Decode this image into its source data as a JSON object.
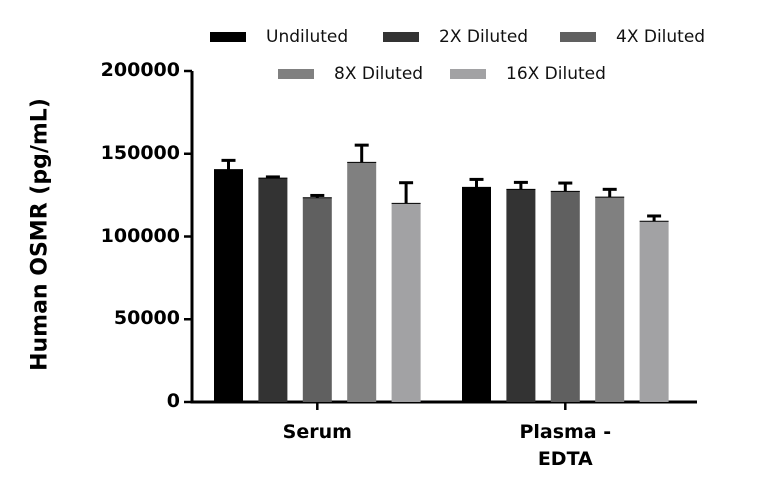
{
  "chart_data": {
    "type": "bar",
    "title": "",
    "xlabel": "",
    "ylabel": "Human OSMR (pg/mL)",
    "ylim": [
      0,
      200000
    ],
    "yticks": [
      "0",
      "50000",
      "100000",
      "150000",
      "200000"
    ],
    "yticks_values": [
      0,
      50000,
      100000,
      150000,
      200000
    ],
    "grid": false,
    "legend_position": "top",
    "categories": [
      "Serum",
      "Plasma - EDTA"
    ],
    "category_lines": [
      [
        "Serum"
      ],
      [
        "Plasma -",
        "EDTA"
      ]
    ],
    "series": [
      {
        "name": "Undiluted",
        "color": "#000000",
        "values": [
          140400,
          129700
        ],
        "error": [
          5600,
          4800
        ]
      },
      {
        "name": "2X Diluted",
        "color": "#333333",
        "values": [
          135300,
          128500
        ],
        "error": [
          700,
          4200
        ]
      },
      {
        "name": "4X Diluted",
        "color": "#606060",
        "values": [
          123400,
          127300
        ],
        "error": [
          1400,
          5000
        ]
      },
      {
        "name": "8X Diluted",
        "color": "#808080",
        "values": [
          144800,
          123800
        ],
        "error": [
          10400,
          4700
        ]
      },
      {
        "name": "16X Diluted",
        "color": "#a2a2a4",
        "values": [
          120000,
          109200
        ],
        "error": [
          12500,
          3200
        ]
      }
    ]
  }
}
